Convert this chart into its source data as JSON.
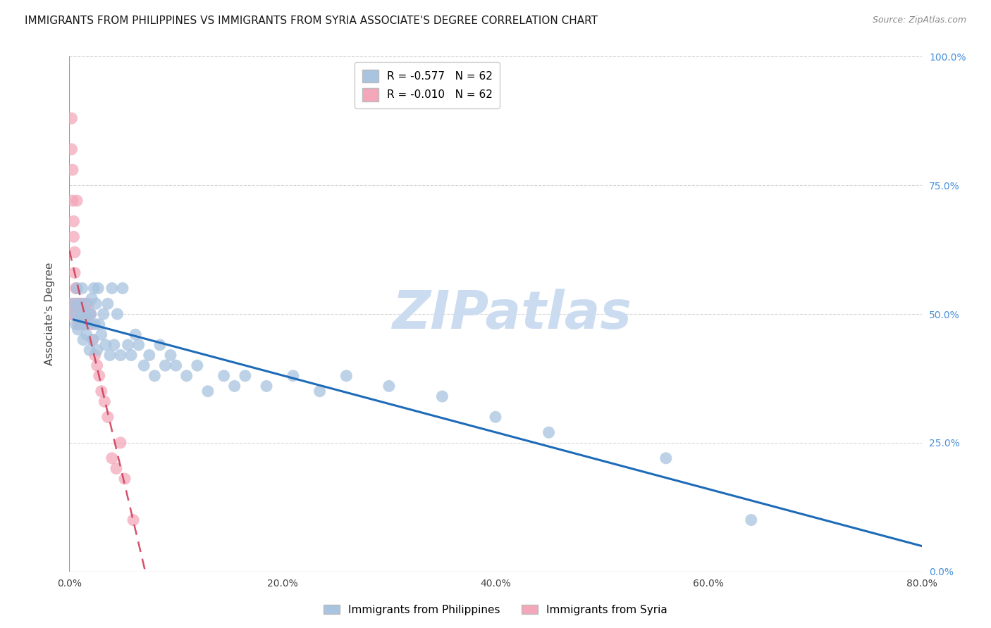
{
  "title": "IMMIGRANTS FROM PHILIPPINES VS IMMIGRANTS FROM SYRIA ASSOCIATE'S DEGREE CORRELATION CHART",
  "source": "Source: ZipAtlas.com",
  "ylabel": "Associate's Degree",
  "xlim": [
    0.0,
    0.8
  ],
  "ylim": [
    0.0,
    1.0
  ],
  "x_ticks": [
    0.0,
    0.1,
    0.2,
    0.3,
    0.4,
    0.5,
    0.6,
    0.7,
    0.8
  ],
  "x_tick_labels": [
    "0.0%",
    "",
    "20.0%",
    "",
    "40.0%",
    "",
    "60.0%",
    "",
    "80.0%"
  ],
  "y_ticks": [
    0.0,
    0.25,
    0.5,
    0.75,
    1.0
  ],
  "y_tick_labels_right": [
    "0.0%",
    "25.0%",
    "50.0%",
    "75.0%",
    "100.0%"
  ],
  "philippines_color": "#a8c4e0",
  "syria_color": "#f4a7b9",
  "philippines_line_color": "#1e6bb8",
  "syria_line_color": "#d0405a",
  "right_axis_color": "#4a90d9",
  "grid_color": "#cccccc",
  "watermark": "ZIPatlas",
  "watermark_color": "#ccdcf0",
  "philippines_R": -0.577,
  "philippines_N": 62,
  "syria_R": -0.01,
  "syria_N": 62,
  "title_fontsize": 11,
  "source_fontsize": 9,
  "philippines_x": [
    0.004,
    0.005,
    0.006,
    0.007,
    0.008,
    0.009,
    0.01,
    0.011,
    0.012,
    0.013,
    0.014,
    0.015,
    0.016,
    0.017,
    0.018,
    0.019,
    0.02,
    0.021,
    0.022,
    0.023,
    0.024,
    0.025,
    0.026,
    0.027,
    0.028,
    0.03,
    0.032,
    0.034,
    0.036,
    0.038,
    0.04,
    0.042,
    0.045,
    0.048,
    0.05,
    0.055,
    0.058,
    0.062,
    0.065,
    0.07,
    0.075,
    0.08,
    0.085,
    0.09,
    0.095,
    0.1,
    0.11,
    0.12,
    0.13,
    0.145,
    0.155,
    0.165,
    0.185,
    0.21,
    0.235,
    0.26,
    0.3,
    0.35,
    0.4,
    0.45,
    0.56,
    0.64
  ],
  "philippines_y": [
    0.52,
    0.5,
    0.48,
    0.55,
    0.47,
    0.52,
    0.49,
    0.5,
    0.55,
    0.45,
    0.48,
    0.52,
    0.46,
    0.48,
    0.5,
    0.43,
    0.5,
    0.53,
    0.45,
    0.55,
    0.48,
    0.52,
    0.43,
    0.55,
    0.48,
    0.46,
    0.5,
    0.44,
    0.52,
    0.42,
    0.55,
    0.44,
    0.5,
    0.42,
    0.55,
    0.44,
    0.42,
    0.46,
    0.44,
    0.4,
    0.42,
    0.38,
    0.44,
    0.4,
    0.42,
    0.4,
    0.38,
    0.4,
    0.35,
    0.38,
    0.36,
    0.38,
    0.36,
    0.38,
    0.35,
    0.38,
    0.36,
    0.34,
    0.3,
    0.27,
    0.22,
    0.1
  ],
  "syria_x": [
    0.001,
    0.001,
    0.002,
    0.002,
    0.002,
    0.003,
    0.003,
    0.003,
    0.004,
    0.004,
    0.004,
    0.005,
    0.005,
    0.005,
    0.005,
    0.006,
    0.006,
    0.006,
    0.007,
    0.007,
    0.007,
    0.007,
    0.008,
    0.008,
    0.008,
    0.009,
    0.009,
    0.009,
    0.01,
    0.01,
    0.01,
    0.011,
    0.011,
    0.011,
    0.012,
    0.012,
    0.013,
    0.013,
    0.014,
    0.014,
    0.015,
    0.015,
    0.016,
    0.016,
    0.017,
    0.018,
    0.018,
    0.019,
    0.02,
    0.021,
    0.022,
    0.024,
    0.026,
    0.028,
    0.03,
    0.033,
    0.036,
    0.04,
    0.044,
    0.048,
    0.052,
    0.06
  ],
  "syria_y": [
    0.5,
    0.52,
    0.88,
    0.82,
    0.5,
    0.78,
    0.72,
    0.5,
    0.68,
    0.65,
    0.5,
    0.62,
    0.58,
    0.52,
    0.5,
    0.55,
    0.52,
    0.5,
    0.72,
    0.55,
    0.52,
    0.5,
    0.52,
    0.5,
    0.48,
    0.52,
    0.5,
    0.48,
    0.52,
    0.5,
    0.48,
    0.52,
    0.5,
    0.48,
    0.52,
    0.5,
    0.5,
    0.48,
    0.52,
    0.5,
    0.52,
    0.48,
    0.5,
    0.52,
    0.5,
    0.52,
    0.48,
    0.5,
    0.5,
    0.48,
    0.45,
    0.42,
    0.4,
    0.38,
    0.35,
    0.33,
    0.3,
    0.22,
    0.2,
    0.25,
    0.18,
    0.1
  ]
}
